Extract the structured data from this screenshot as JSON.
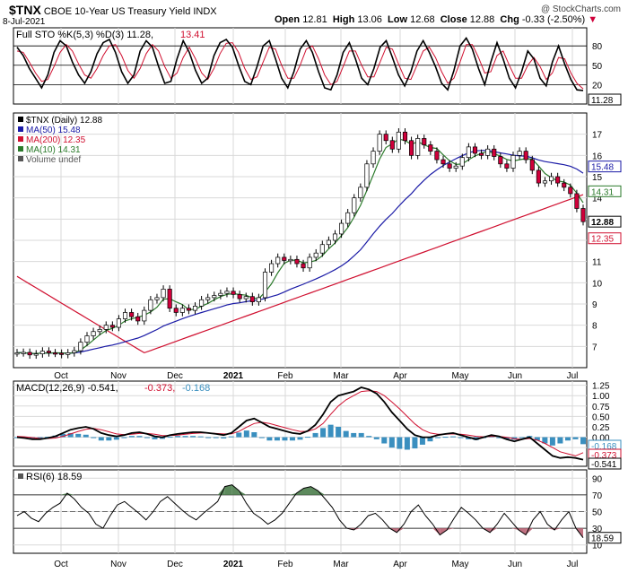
{
  "header": {
    "symbol": "$TNX",
    "name": "CBOE 10-Year US Treasury Yield INDX",
    "date": "8-Jul-2021",
    "copyright": "@ StockCharts.com",
    "open_label": "Open",
    "open": "12.81",
    "high_label": "High",
    "high": "13.06",
    "low_label": "Low",
    "low": "12.68",
    "close_label": "Close",
    "close": "12.88",
    "chg_label": "Chg",
    "chg": "-0.33 (-2.50%)"
  },
  "colors": {
    "up": "#ffffff",
    "down": "#d0003a",
    "ma50": "#1a1aa6",
    "ma200": "#d01030",
    "ma10": "#2a7a2a",
    "hist": "#3a8fbf",
    "rsi_fill": "#5d8a5d"
  },
  "chart_data": [
    {
      "type": "line",
      "title": "Full STO %K(5,3) %D(3) 11.28, 13.41",
      "legend": "Full STO %K(5,3) %D(3)",
      "k_value": "11.28",
      "d_value": "13.41",
      "ylim": [
        0,
        100
      ],
      "ticks": [
        "80",
        "50",
        "20"
      ],
      "last_label": "11.28",
      "series": [
        {
          "name": "%K",
          "values": [
            78,
            65,
            45,
            30,
            15,
            35,
            70,
            88,
            80,
            55,
            35,
            22,
            40,
            68,
            85,
            90,
            70,
            40,
            22,
            35,
            72,
            88,
            78,
            48,
            22,
            25,
            60,
            88,
            70,
            42,
            22,
            30,
            65,
            85,
            90,
            78,
            50,
            25,
            20,
            48,
            80,
            88,
            60,
            30,
            15,
            40,
            75,
            88,
            70,
            40,
            15,
            12,
            35,
            70,
            85,
            60,
            30,
            20,
            45,
            78,
            88,
            62,
            35,
            18,
            40,
            72,
            88,
            70,
            48,
            22,
            12,
            42,
            80,
            92,
            75,
            45,
            20,
            55,
            85,
            60,
            30,
            15,
            40,
            72,
            60,
            30,
            18,
            55,
            80,
            52,
            28,
            12,
            11
          ]
        },
        {
          "name": "%D",
          "values": [
            72,
            70,
            55,
            38,
            25,
            28,
            48,
            70,
            82,
            72,
            52,
            35,
            30,
            45,
            65,
            80,
            82,
            65,
            42,
            30,
            45,
            68,
            82,
            72,
            48,
            30,
            38,
            62,
            78,
            60,
            38,
            28,
            45,
            68,
            84,
            85,
            70,
            45,
            28,
            32,
            55,
            78,
            75,
            50,
            30,
            30,
            50,
            75,
            80,
            60,
            35,
            20,
            25,
            48,
            72,
            72,
            50,
            32,
            32,
            55,
            78,
            75,
            52,
            30,
            28,
            50,
            72,
            78,
            62,
            40,
            22,
            30,
            55,
            82,
            82,
            62,
            38,
            40,
            65,
            72,
            50,
            30,
            30,
            50,
            62,
            48,
            28,
            38,
            62,
            60,
            38,
            22,
            13.41
          ]
        }
      ]
    },
    {
      "type": "candlestick",
      "legend": [
        "$TNX (Daily) 12.88",
        "MA(50) 15.48",
        "MA(200) 12.35",
        "MA(10) 14.31",
        "Volume undef"
      ],
      "ylim": [
        6,
        18
      ],
      "y_ticks": [
        "17",
        "16",
        "15",
        "14",
        "13",
        "12",
        "11",
        "10",
        "9",
        "8",
        "7"
      ],
      "x_labels": [
        "Oct",
        "Nov",
        "Dec",
        "2021",
        "Feb",
        "Mar",
        "Apr",
        "May",
        "Jun",
        "Jul"
      ],
      "last_labels": {
        "ma50": "15.48",
        "ma10": "14.31",
        "close": "12.88",
        "ma200": "12.35"
      },
      "close": [
        6.7,
        6.72,
        6.6,
        6.65,
        6.78,
        6.7,
        6.68,
        6.62,
        6.7,
        6.8,
        7.2,
        7.5,
        7.7,
        7.8,
        8.0,
        7.9,
        8.3,
        8.6,
        8.4,
        8.2,
        8.7,
        9.2,
        9.3,
        9.7,
        8.8,
        8.6,
        8.8,
        8.7,
        8.9,
        9.2,
        9.3,
        9.4,
        9.5,
        9.6,
        9.45,
        9.25,
        9.35,
        9.1,
        9.3,
        10.5,
        10.9,
        11.2,
        11.05,
        11.1,
        10.9,
        10.7,
        11.2,
        11.4,
        11.8,
        12.0,
        12.3,
        12.8,
        13.3,
        14.0,
        14.5,
        15.6,
        16.2,
        17.0,
        16.7,
        16.3,
        17.1,
        16.7,
        16.0,
        16.8,
        16.5,
        16.2,
        15.8,
        15.6,
        15.4,
        15.5,
        15.9,
        16.4,
        16.1,
        16.0,
        16.3,
        15.95,
        15.6,
        15.4,
        16.0,
        16.2,
        15.8,
        15.3,
        14.7,
        14.8,
        15.0,
        14.7,
        14.5,
        14.2,
        13.5,
        12.88
      ]
    },
    {
      "type": "line",
      "title": "MACD(12,26,9) -0.541, -0.373, -0.168",
      "legend": "MACD(12,26,9)",
      "values_text": [
        "-0.541",
        "-0.373",
        "-0.168"
      ],
      "ylim": [
        -0.7,
        1.35
      ],
      "ticks": [
        "1.25",
        "1.00",
        "0.75",
        "0.50",
        "0.25",
        "0.00",
        "-0.25"
      ],
      "last_labels": [
        "-0.168",
        "-0.373",
        "-0.541"
      ],
      "series": [
        {
          "name": "MACD",
          "values": [
            0.0,
            -0.02,
            -0.05,
            -0.05,
            -0.02,
            0.02,
            0.1,
            0.18,
            0.22,
            0.25,
            0.2,
            0.1,
            0.05,
            0.02,
            0.05,
            0.1,
            0.12,
            0.08,
            0.02,
            0.0,
            0.05,
            0.08,
            0.1,
            0.12,
            0.12,
            0.1,
            0.08,
            0.05,
            0.1,
            0.25,
            0.4,
            0.45,
            0.35,
            0.25,
            0.2,
            0.15,
            0.1,
            0.08,
            0.15,
            0.3,
            0.55,
            0.85,
            1.0,
            1.05,
            1.1,
            1.2,
            1.15,
            1.05,
            0.85,
            0.6,
            0.4,
            0.2,
            0.05,
            0.0,
            0.0,
            0.05,
            0.08,
            0.1,
            0.05,
            0.0,
            -0.05,
            0.0,
            0.05,
            0.02,
            -0.05,
            -0.1,
            -0.05,
            0.0,
            -0.15,
            -0.3,
            -0.45,
            -0.5,
            -0.48,
            -0.5,
            -0.54
          ]
        },
        {
          "name": "Signal",
          "values": [
            0.02,
            0.01,
            -0.01,
            -0.03,
            -0.03,
            -0.02,
            0.02,
            0.08,
            0.14,
            0.19,
            0.21,
            0.18,
            0.13,
            0.08,
            0.06,
            0.07,
            0.09,
            0.09,
            0.07,
            0.04,
            0.04,
            0.05,
            0.07,
            0.09,
            0.1,
            0.1,
            0.09,
            0.08,
            0.08,
            0.14,
            0.24,
            0.33,
            0.36,
            0.33,
            0.28,
            0.23,
            0.18,
            0.14,
            0.14,
            0.2,
            0.33,
            0.55,
            0.75,
            0.9,
            1.0,
            1.1,
            1.12,
            1.1,
            1.0,
            0.85,
            0.68,
            0.5,
            0.32,
            0.18,
            0.1,
            0.07,
            0.07,
            0.08,
            0.07,
            0.05,
            0.02,
            0.01,
            0.02,
            0.02,
            0.0,
            -0.04,
            -0.05,
            -0.03,
            -0.07,
            -0.15,
            -0.25,
            -0.35,
            -0.4,
            -0.45,
            -0.373
          ]
        },
        {
          "name": "Histogram",
          "values": [
            -0.02,
            -0.03,
            -0.04,
            -0.02,
            0.01,
            0.04,
            0.08,
            0.1,
            0.08,
            0.06,
            -0.01,
            -0.08,
            -0.08,
            -0.06,
            -0.01,
            0.03,
            0.03,
            -0.01,
            -0.05,
            -0.04,
            0.01,
            0.03,
            0.03,
            0.03,
            0.02,
            0.0,
            -0.01,
            -0.03,
            0.02,
            0.11,
            0.16,
            0.12,
            -0.01,
            -0.08,
            -0.08,
            -0.08,
            -0.08,
            -0.06,
            0.01,
            0.1,
            0.22,
            0.3,
            0.25,
            0.15,
            0.1,
            0.1,
            0.03,
            -0.05,
            -0.15,
            -0.25,
            -0.28,
            -0.3,
            -0.27,
            -0.18,
            -0.1,
            -0.02,
            0.01,
            0.02,
            -0.02,
            -0.05,
            -0.07,
            -0.01,
            0.03,
            0.0,
            -0.05,
            -0.06,
            0.0,
            0.03,
            -0.08,
            -0.15,
            -0.2,
            -0.15,
            -0.08,
            -0.05,
            -0.168
          ]
        }
      ]
    },
    {
      "type": "line",
      "title": "RSI(6) 18.59",
      "legend": "RSI(6)",
      "value_text": "18.59",
      "ylim": [
        0,
        100
      ],
      "ticks": [
        "90",
        "70",
        "50",
        "30",
        "10"
      ],
      "last_label": "18.59",
      "x_labels": [
        "Oct",
        "Nov",
        "Dec",
        "2021",
        "Feb",
        "Mar",
        "Apr",
        "May",
        "Jun",
        "Jul"
      ],
      "values": [
        45,
        50,
        42,
        38,
        48,
        55,
        60,
        72,
        65,
        55,
        48,
        35,
        30,
        45,
        58,
        62,
        55,
        48,
        40,
        50,
        62,
        68,
        60,
        52,
        45,
        40,
        48,
        55,
        62,
        80,
        82,
        75,
        60,
        48,
        42,
        35,
        40,
        48,
        60,
        72,
        78,
        80,
        75,
        65,
        55,
        40,
        30,
        28,
        35,
        45,
        48,
        40,
        30,
        25,
        35,
        50,
        58,
        45,
        35,
        22,
        28,
        42,
        55,
        48,
        40,
        30,
        25,
        35,
        48,
        38,
        28,
        22,
        40,
        50,
        35,
        28,
        40,
        50,
        30,
        18.59
      ]
    }
  ]
}
